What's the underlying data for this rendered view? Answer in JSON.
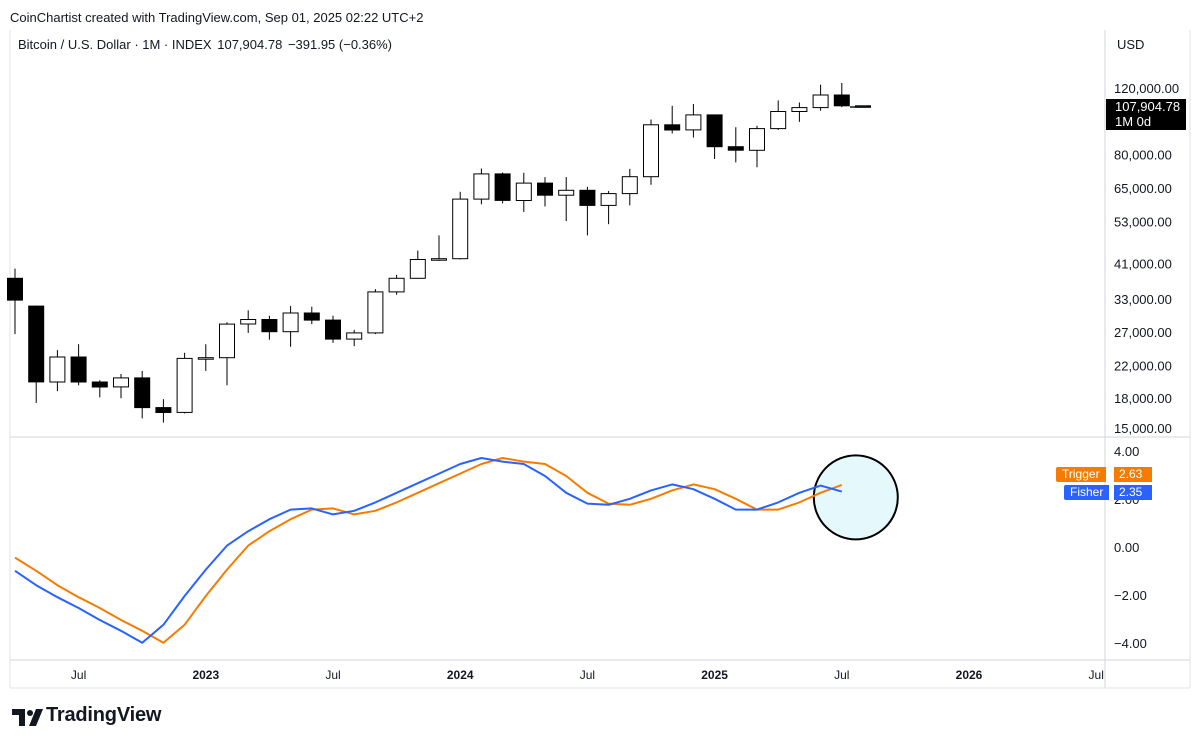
{
  "header": {
    "attribution": "CoinChartist created with TradingView.com, Sep 01, 2025 02:22 UTC+2"
  },
  "legend": {
    "symbol": "Bitcoin / U.S. Dollar · 1M · INDEX",
    "last": "107,904.78",
    "change": "−391.95 (−0.36%)"
  },
  "currency": "USD",
  "price_tag": {
    "value": "107,904.78",
    "countdown": "1M 0d"
  },
  "indicator": {
    "trigger": {
      "name": "Trigger",
      "value": "2.63",
      "color": "#f57c00"
    },
    "fisher": {
      "name": "Fisher",
      "value": "2.35",
      "color": "#2962ff"
    }
  },
  "branding": {
    "logo_text": "TradingView"
  },
  "chart_data": {
    "type": "candlestick",
    "timeframe": "1M",
    "scale": "log",
    "x_ticks": [
      {
        "label": "Jul",
        "date": "2022-07",
        "bold": false
      },
      {
        "label": "2023",
        "date": "2023-01",
        "bold": true
      },
      {
        "label": "Jul",
        "date": "2023-07",
        "bold": false
      },
      {
        "label": "2024",
        "date": "2024-01",
        "bold": true
      },
      {
        "label": "Jul",
        "date": "2024-07",
        "bold": false
      },
      {
        "label": "2025",
        "date": "2025-01",
        "bold": true
      },
      {
        "label": "Jul",
        "date": "2025-07",
        "bold": false
      },
      {
        "label": "2026",
        "date": "2026-01",
        "bold": true
      },
      {
        "label": "Jul",
        "date": "2026-07",
        "bold": false
      }
    ],
    "price_axis_ticks": [
      "120,000.00",
      "80,000.00",
      "65,000.00",
      "53,000.00",
      "41,000.00",
      "33,000.00",
      "27,000.00",
      "22,000.00",
      "18,000.00",
      "15,000.00"
    ],
    "indicator_axis_ticks": [
      "4.00",
      "2.00",
      "0.00",
      "−2.00",
      "−4.00"
    ],
    "candles": [
      {
        "date": "2022-04",
        "o": 37700,
        "h": 40000,
        "l": 26800,
        "c": 33000
      },
      {
        "date": "2022-05",
        "o": 31800,
        "h": 31900,
        "l": 17600,
        "c": 20000
      },
      {
        "date": "2022-06",
        "o": 20000,
        "h": 24300,
        "l": 18900,
        "c": 23300
      },
      {
        "date": "2022-07",
        "o": 23300,
        "h": 25200,
        "l": 19600,
        "c": 20000
      },
      {
        "date": "2022-08",
        "o": 20000,
        "h": 20200,
        "l": 18200,
        "c": 19400
      },
      {
        "date": "2022-09",
        "o": 19400,
        "h": 21000,
        "l": 18100,
        "c": 20500
      },
      {
        "date": "2022-10",
        "o": 20500,
        "h": 21400,
        "l": 16000,
        "c": 17100
      },
      {
        "date": "2022-11",
        "o": 17100,
        "h": 18000,
        "l": 15600,
        "c": 16600
      },
      {
        "date": "2022-12",
        "o": 16600,
        "h": 23900,
        "l": 16500,
        "c": 23100
      },
      {
        "date": "2023-01",
        "o": 23100,
        "h": 25200,
        "l": 21400,
        "c": 23200
      },
      {
        "date": "2023-02",
        "o": 23200,
        "h": 28800,
        "l": 19600,
        "c": 28500
      },
      {
        "date": "2023-03",
        "o": 28500,
        "h": 31000,
        "l": 27000,
        "c": 29300
      },
      {
        "date": "2023-04",
        "o": 29300,
        "h": 30000,
        "l": 25900,
        "c": 27200
      },
      {
        "date": "2023-05",
        "o": 27200,
        "h": 31800,
        "l": 24800,
        "c": 30500
      },
      {
        "date": "2023-06",
        "o": 30500,
        "h": 31700,
        "l": 28500,
        "c": 29200
      },
      {
        "date": "2023-07",
        "o": 29200,
        "h": 30000,
        "l": 25400,
        "c": 26000
      },
      {
        "date": "2023-08",
        "o": 26000,
        "h": 27500,
        "l": 24900,
        "c": 27000
      },
      {
        "date": "2023-09",
        "o": 27000,
        "h": 35300,
        "l": 26800,
        "c": 34700
      },
      {
        "date": "2023-10",
        "o": 34700,
        "h": 38500,
        "l": 34100,
        "c": 37700
      },
      {
        "date": "2023-11",
        "o": 37700,
        "h": 44700,
        "l": 37600,
        "c": 42300
      },
      {
        "date": "2023-12",
        "o": 42300,
        "h": 49000,
        "l": 41900,
        "c": 42500
      },
      {
        "date": "2024-01",
        "o": 42500,
        "h": 64000,
        "l": 42300,
        "c": 61200
      },
      {
        "date": "2024-02",
        "o": 61200,
        "h": 73800,
        "l": 59300,
        "c": 71400
      },
      {
        "date": "2024-03",
        "o": 71400,
        "h": 72000,
        "l": 59600,
        "c": 60700
      },
      {
        "date": "2024-04",
        "o": 60700,
        "h": 71900,
        "l": 56600,
        "c": 67500
      },
      {
        "date": "2024-05",
        "o": 67500,
        "h": 70000,
        "l": 58500,
        "c": 62700
      },
      {
        "date": "2024-06",
        "o": 62700,
        "h": 70000,
        "l": 53500,
        "c": 64600
      },
      {
        "date": "2024-07",
        "o": 64600,
        "h": 66000,
        "l": 49000,
        "c": 58900
      },
      {
        "date": "2024-08",
        "o": 58900,
        "h": 64300,
        "l": 52500,
        "c": 63300
      },
      {
        "date": "2024-09",
        "o": 63300,
        "h": 73600,
        "l": 58900,
        "c": 70200
      },
      {
        "date": "2024-10",
        "o": 70200,
        "h": 99600,
        "l": 66800,
        "c": 96400
      },
      {
        "date": "2024-11",
        "o": 96400,
        "h": 108300,
        "l": 91400,
        "c": 93400
      },
      {
        "date": "2024-12",
        "o": 93400,
        "h": 109500,
        "l": 89200,
        "c": 102400
      },
      {
        "date": "2025-01",
        "o": 102400,
        "h": 102500,
        "l": 78200,
        "c": 84300
      },
      {
        "date": "2025-02",
        "o": 84300,
        "h": 95000,
        "l": 76600,
        "c": 82500
      },
      {
        "date": "2025-03",
        "o": 82500,
        "h": 95800,
        "l": 74400,
        "c": 94200
      },
      {
        "date": "2025-04",
        "o": 94200,
        "h": 111900,
        "l": 93400,
        "c": 104600
      },
      {
        "date": "2025-05",
        "o": 104600,
        "h": 110500,
        "l": 98200,
        "c": 107100
      },
      {
        "date": "2025-06",
        "o": 107100,
        "h": 123200,
        "l": 105100,
        "c": 115700
      },
      {
        "date": "2025-07",
        "o": 115700,
        "h": 124500,
        "l": 107400,
        "c": 108300
      },
      {
        "date": "2025-08",
        "o": 108300,
        "h": 108300,
        "l": 107600,
        "c": 107900
      }
    ],
    "series": [
      {
        "name": "Fisher",
        "color": "#2962ff",
        "values": [
          {
            "date": "2022-04",
            "y": -0.95
          },
          {
            "date": "2022-05",
            "y": -1.55
          },
          {
            "date": "2022-06",
            "y": -2.05
          },
          {
            "date": "2022-07",
            "y": -2.5
          },
          {
            "date": "2022-08",
            "y": -3.0
          },
          {
            "date": "2022-09",
            "y": -3.45
          },
          {
            "date": "2022-10",
            "y": -3.95
          },
          {
            "date": "2022-11",
            "y": -3.2
          },
          {
            "date": "2022-12",
            "y": -2.0
          },
          {
            "date": "2023-01",
            "y": -0.9
          },
          {
            "date": "2023-02",
            "y": 0.1
          },
          {
            "date": "2023-03",
            "y": 0.7
          },
          {
            "date": "2023-04",
            "y": 1.2
          },
          {
            "date": "2023-05",
            "y": 1.6
          },
          {
            "date": "2023-06",
            "y": 1.65
          },
          {
            "date": "2023-07",
            "y": 1.4
          },
          {
            "date": "2023-08",
            "y": 1.55
          },
          {
            "date": "2023-09",
            "y": 1.9
          },
          {
            "date": "2023-10",
            "y": 2.3
          },
          {
            "date": "2023-11",
            "y": 2.7
          },
          {
            "date": "2023-12",
            "y": 3.1
          },
          {
            "date": "2024-01",
            "y": 3.5
          },
          {
            "date": "2024-02",
            "y": 3.75
          },
          {
            "date": "2024-03",
            "y": 3.6
          },
          {
            "date": "2024-04",
            "y": 3.5
          },
          {
            "date": "2024-05",
            "y": 3.0
          },
          {
            "date": "2024-06",
            "y": 2.3
          },
          {
            "date": "2024-07",
            "y": 1.85
          },
          {
            "date": "2024-08",
            "y": 1.8
          },
          {
            "date": "2024-09",
            "y": 2.05
          },
          {
            "date": "2024-10",
            "y": 2.4
          },
          {
            "date": "2024-11",
            "y": 2.65
          },
          {
            "date": "2024-12",
            "y": 2.45
          },
          {
            "date": "2025-01",
            "y": 2.05
          },
          {
            "date": "2025-02",
            "y": 1.6
          },
          {
            "date": "2025-03",
            "y": 1.6
          },
          {
            "date": "2025-04",
            "y": 1.9
          },
          {
            "date": "2025-05",
            "y": 2.3
          },
          {
            "date": "2025-06",
            "y": 2.6
          },
          {
            "date": "2025-07",
            "y": 2.35
          }
        ]
      },
      {
        "name": "Trigger",
        "color": "#f57c00",
        "values": [
          {
            "date": "2022-04",
            "y": -0.4
          },
          {
            "date": "2022-05",
            "y": -0.95
          },
          {
            "date": "2022-06",
            "y": -1.55
          },
          {
            "date": "2022-07",
            "y": -2.05
          },
          {
            "date": "2022-08",
            "y": -2.5
          },
          {
            "date": "2022-09",
            "y": -3.0
          },
          {
            "date": "2022-10",
            "y": -3.45
          },
          {
            "date": "2022-11",
            "y": -3.95
          },
          {
            "date": "2022-12",
            "y": -3.2
          },
          {
            "date": "2023-01",
            "y": -2.0
          },
          {
            "date": "2023-02",
            "y": -0.9
          },
          {
            "date": "2023-03",
            "y": 0.1
          },
          {
            "date": "2023-04",
            "y": 0.7
          },
          {
            "date": "2023-05",
            "y": 1.2
          },
          {
            "date": "2023-06",
            "y": 1.6
          },
          {
            "date": "2023-07",
            "y": 1.65
          },
          {
            "date": "2023-08",
            "y": 1.4
          },
          {
            "date": "2023-09",
            "y": 1.55
          },
          {
            "date": "2023-10",
            "y": 1.9
          },
          {
            "date": "2023-11",
            "y": 2.3
          },
          {
            "date": "2023-12",
            "y": 2.7
          },
          {
            "date": "2024-01",
            "y": 3.1
          },
          {
            "date": "2024-02",
            "y": 3.5
          },
          {
            "date": "2024-03",
            "y": 3.75
          },
          {
            "date": "2024-04",
            "y": 3.6
          },
          {
            "date": "2024-05",
            "y": 3.5
          },
          {
            "date": "2024-06",
            "y": 3.0
          },
          {
            "date": "2024-07",
            "y": 2.3
          },
          {
            "date": "2024-08",
            "y": 1.85
          },
          {
            "date": "2024-09",
            "y": 1.8
          },
          {
            "date": "2024-10",
            "y": 2.05
          },
          {
            "date": "2024-11",
            "y": 2.4
          },
          {
            "date": "2024-12",
            "y": 2.65
          },
          {
            "date": "2025-01",
            "y": 2.45
          },
          {
            "date": "2025-02",
            "y": 2.05
          },
          {
            "date": "2025-03",
            "y": 1.6
          },
          {
            "date": "2025-04",
            "y": 1.6
          },
          {
            "date": "2025-05",
            "y": 1.9
          },
          {
            "date": "2025-06",
            "y": 2.3
          },
          {
            "date": "2025-07",
            "y": 2.63
          }
        ]
      }
    ],
    "annotation": {
      "shape": "circle",
      "around_date": "2025-07",
      "around_value": 2.4,
      "fill": "#e0f7fa"
    }
  }
}
